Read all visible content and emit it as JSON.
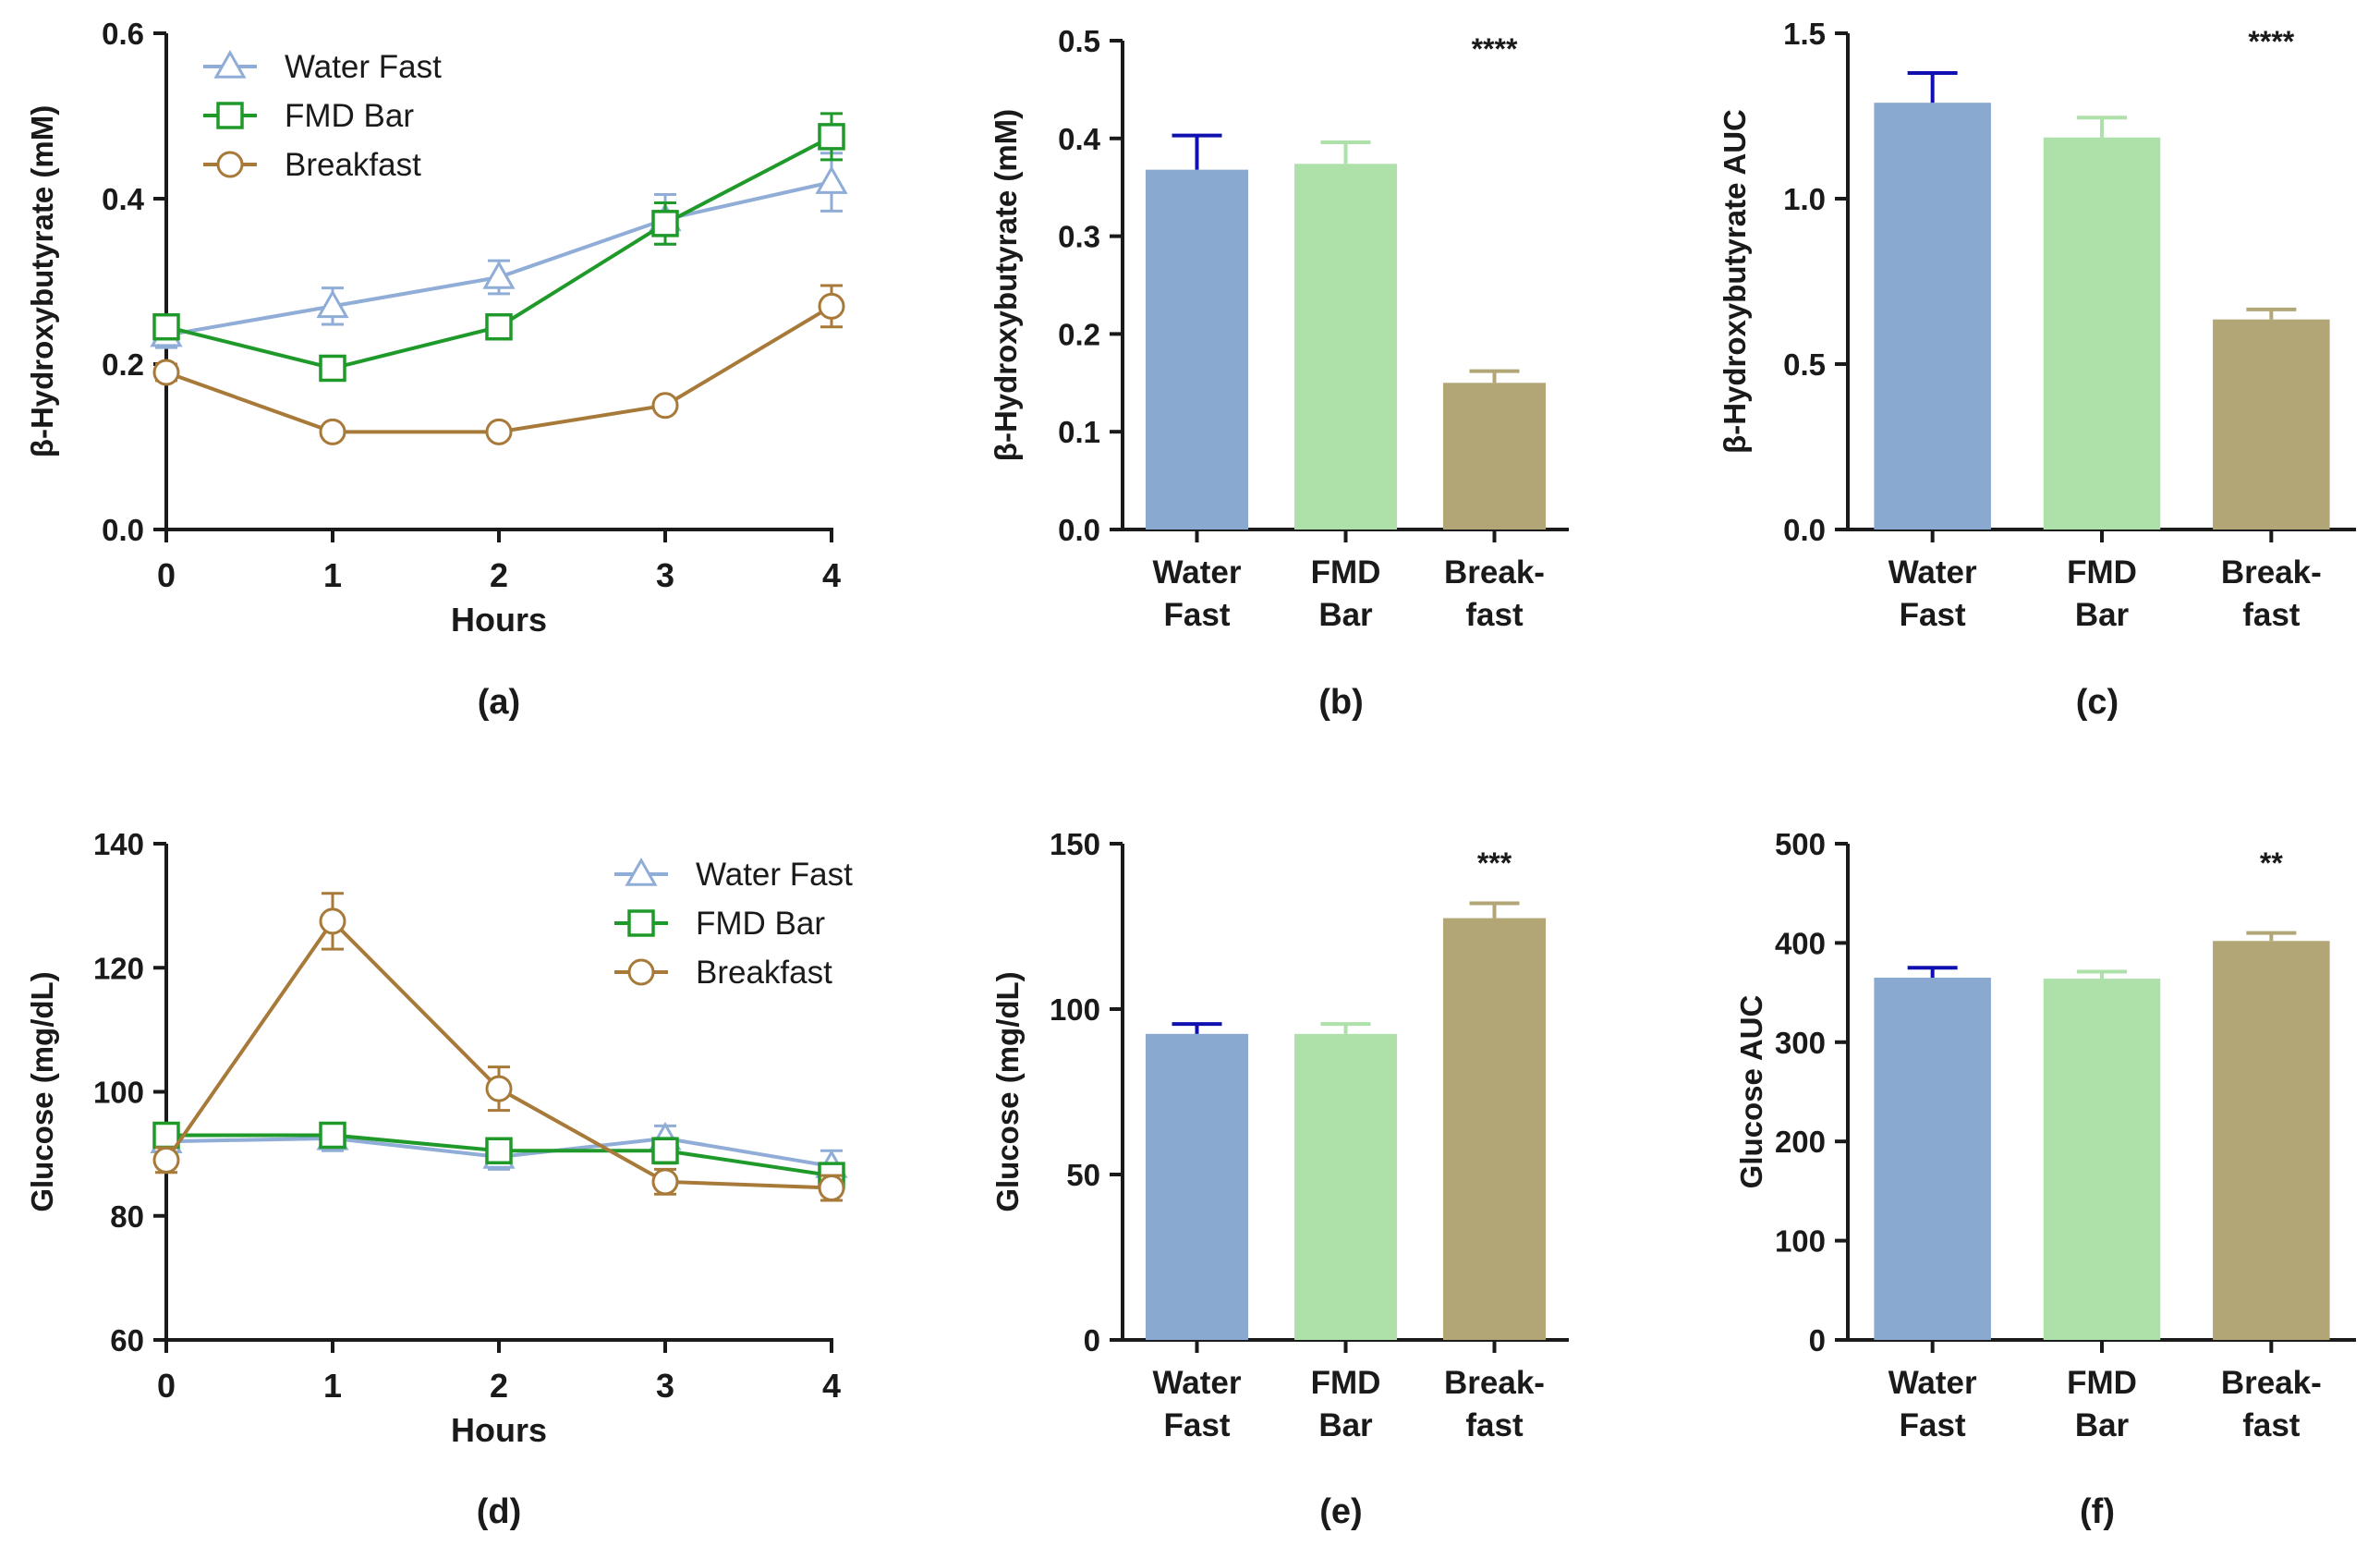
{
  "colors": {
    "water_fast": "#8FADD6",
    "fmd_bar": "#1F9A2A",
    "breakfast": "#A87A3A",
    "bar_water_fast": "#8AA9D1",
    "bar_fmd_bar": "#AEE0AA",
    "bar_breakfast": "#B2A677",
    "err_water_fast": "#1010B0",
    "err_fmd_bar": "#AEE0AA",
    "err_breakfast": "#B2A677",
    "axis": "#1a1a1a"
  },
  "chart_data": [
    {
      "id": "a",
      "panel_label": "(a)",
      "type": "line",
      "ylabel": "β-Hydroxybutyrate (mM)",
      "xlabel": "Hours",
      "x": [
        0,
        1,
        2,
        3,
        4
      ],
      "xlim": [
        0,
        4
      ],
      "ylim": [
        0,
        0.6
      ],
      "yticks": [
        "0.0",
        "0.2",
        "0.4",
        "0.6"
      ],
      "ytick_values": [
        0,
        0.2,
        0.4,
        0.6
      ],
      "xticks": [
        "0",
        "1",
        "2",
        "3",
        "4"
      ],
      "legend": {
        "position": "top-left",
        "entries": [
          "Water Fast",
          "FMD Bar",
          "Breakfast"
        ]
      },
      "series": [
        {
          "name": "Water Fast",
          "marker": "triangle",
          "color_key": "water_fast",
          "values": [
            0.235,
            0.27,
            0.305,
            0.375,
            0.42
          ],
          "errors": [
            0.015,
            0.022,
            0.02,
            0.03,
            0.035
          ]
        },
        {
          "name": "FMD Bar",
          "marker": "square",
          "color_key": "fmd_bar",
          "values": [
            0.245,
            0.195,
            0.245,
            0.37,
            0.475
          ],
          "errors": [
            0.012,
            0.008,
            0.014,
            0.025,
            0.028
          ]
        },
        {
          "name": "Breakfast",
          "marker": "circle",
          "color_key": "breakfast",
          "values": [
            0.19,
            0.118,
            0.118,
            0.15,
            0.27
          ],
          "errors": [
            0.01,
            0.005,
            0.005,
            0.006,
            0.025
          ]
        }
      ]
    },
    {
      "id": "b",
      "panel_label": "(b)",
      "type": "bar",
      "ylabel": "β-Hydroxybutyrate (mM)",
      "ylim": [
        0,
        0.5
      ],
      "yticks": [
        "0.0",
        "0.1",
        "0.2",
        "0.3",
        "0.4",
        "0.5"
      ],
      "ytick_values": [
        0,
        0.1,
        0.2,
        0.3,
        0.4,
        0.5
      ],
      "categories": [
        [
          "Water",
          "Fast"
        ],
        [
          "FMD",
          "Bar"
        ],
        [
          "Break-",
          "fast"
        ]
      ],
      "values": [
        0.368,
        0.374,
        0.15
      ],
      "errors": [
        0.035,
        0.022,
        0.012
      ],
      "significance": "****"
    },
    {
      "id": "c",
      "panel_label": "(c)",
      "type": "bar",
      "ylabel": "β-Hydroxybutyrate AUC",
      "ylim": [
        0,
        1.5
      ],
      "yticks": [
        "0.0",
        "0.5",
        "1.0",
        "1.5"
      ],
      "ytick_values": [
        0,
        0.5,
        1.0,
        1.5
      ],
      "categories": [
        [
          "Water",
          "Fast"
        ],
        [
          "FMD",
          "Bar"
        ],
        [
          "Break-",
          "fast"
        ]
      ],
      "values": [
        1.29,
        1.185,
        0.635
      ],
      "errors": [
        0.09,
        0.06,
        0.03
      ],
      "significance": "****"
    },
    {
      "id": "d",
      "panel_label": "(d)",
      "type": "line",
      "ylabel": "Glucose (mg/dL)",
      "xlabel": "Hours",
      "x": [
        0,
        1,
        2,
        3,
        4
      ],
      "xlim": [
        0,
        4
      ],
      "ylim": [
        60,
        140
      ],
      "yticks": [
        "60",
        "80",
        "100",
        "120",
        "140"
      ],
      "ytick_values": [
        60,
        80,
        100,
        120,
        140
      ],
      "xticks": [
        "0",
        "1",
        "2",
        "3",
        "4"
      ],
      "legend": {
        "position": "top-right",
        "entries": [
          "Water Fast",
          "FMD Bar",
          "Breakfast"
        ]
      },
      "series": [
        {
          "name": "Water Fast",
          "marker": "triangle",
          "color_key": "water_fast",
          "values": [
            92,
            92.5,
            89.5,
            92.5,
            88
          ],
          "errors": [
            2,
            2,
            2,
            2,
            2.5
          ]
        },
        {
          "name": "FMD Bar",
          "marker": "square",
          "color_key": "fmd_bar",
          "values": [
            93,
            93,
            90.5,
            90.5,
            86.5
          ],
          "errors": [
            1.5,
            1.5,
            1.5,
            2,
            1.5
          ]
        },
        {
          "name": "Breakfast",
          "marker": "circle",
          "color_key": "breakfast",
          "values": [
            89,
            127.5,
            100.5,
            85.5,
            84.5
          ],
          "errors": [
            2,
            4.5,
            3.5,
            2,
            2
          ]
        }
      ]
    },
    {
      "id": "e",
      "panel_label": "(e)",
      "type": "bar",
      "ylabel": "Glucose (mg/dL)",
      "ylim": [
        0,
        150
      ],
      "yticks": [
        "0",
        "50",
        "100",
        "150"
      ],
      "ytick_values": [
        0,
        50,
        100,
        150
      ],
      "categories": [
        [
          "Water",
          "Fast"
        ],
        [
          "FMD",
          "Bar"
        ],
        [
          "Break-",
          "fast"
        ]
      ],
      "values": [
        92.5,
        92.5,
        127.5
      ],
      "errors": [
        3,
        3,
        4.5
      ],
      "significance": "***"
    },
    {
      "id": "f",
      "panel_label": "(f)",
      "type": "bar",
      "ylabel": "Glucose AUC",
      "ylim": [
        0,
        500
      ],
      "yticks": [
        "0",
        "100",
        "200",
        "300",
        "400",
        "500"
      ],
      "ytick_values": [
        0,
        100,
        200,
        300,
        400,
        500
      ],
      "categories": [
        [
          "Water",
          "Fast"
        ],
        [
          "FMD",
          "Bar"
        ],
        [
          "Break-",
          "fast"
        ]
      ],
      "values": [
        365,
        364,
        402
      ],
      "errors": [
        10,
        7,
        8
      ],
      "significance": "**"
    }
  ]
}
